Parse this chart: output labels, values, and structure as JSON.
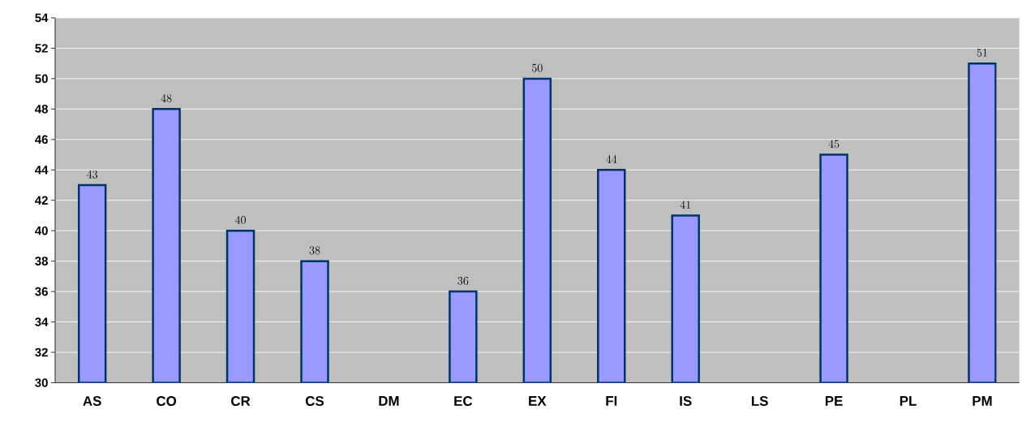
{
  "chart_data": {
    "type": "bar",
    "categories": [
      "AS",
      "CO",
      "CR",
      "CS",
      "DM",
      "EC",
      "EX",
      "FI",
      "IS",
      "LS",
      "PE",
      "PL",
      "PM"
    ],
    "values": [
      43,
      48,
      40,
      38,
      null,
      36,
      50,
      44,
      41,
      null,
      45,
      null,
      51
    ],
    "color": "#9999ff",
    "ylim": [
      30,
      54
    ],
    "yticks": [
      30,
      32,
      34,
      36,
      38,
      40,
      42,
      44,
      46,
      48,
      50,
      52,
      54
    ],
    "grid": "y",
    "data_labels": true
  }
}
